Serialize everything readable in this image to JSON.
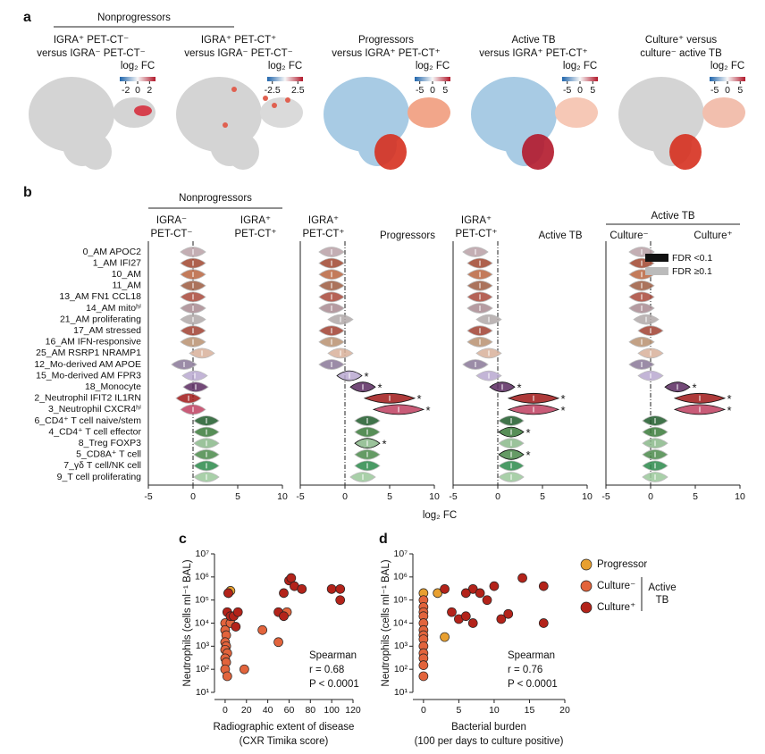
{
  "panel_labels": [
    "a",
    "b",
    "c",
    "d"
  ],
  "chart_data": [
    {
      "type": "umap",
      "group": "Nonprogressors",
      "title": [
        "IGRA⁺ PET-CT⁻",
        "versus IGRA⁻ PET-CT⁻"
      ],
      "colorbar_label": "log₂ FC",
      "clim": [
        -3,
        3
      ],
      "colorbar_ticks": [
        -2,
        0,
        2
      ]
    },
    {
      "type": "umap",
      "title": [
        "IGRA⁺ PET-CT⁺",
        "versus IGRA⁻ PET-CT⁻"
      ],
      "colorbar_label": "log₂ FC",
      "clim": [
        -3.5,
        3.5
      ],
      "colorbar_ticks": [
        -2.5,
        2.5
      ]
    },
    {
      "type": "umap",
      "title": [
        "Progressors",
        "versus IGRA⁺ PET-CT⁺"
      ],
      "colorbar_label": "log₂ FC",
      "clim": [
        -7,
        7
      ],
      "colorbar_ticks": [
        -5,
        0,
        5
      ]
    },
    {
      "type": "umap",
      "title": [
        "Active TB",
        "versus IGRA⁺ PET-CT⁺"
      ],
      "colorbar_label": "log₂ FC",
      "clim": [
        -7,
        7
      ],
      "colorbar_ticks": [
        -5,
        0,
        5
      ]
    },
    {
      "type": "umap",
      "title": [
        "Culture⁺ versus",
        "culture⁻ active TB"
      ],
      "colorbar_label": "log₂ FC",
      "clim": [
        -7,
        7
      ],
      "colorbar_ticks": [
        -5,
        0,
        5
      ]
    },
    {
      "type": "violin",
      "categories": [
        "0_AM APOC2",
        "1_AM IFI27",
        "10_AM",
        "11_AM",
        "13_AM FN1 CCL18",
        "14_AM mitoʰⁱ",
        "21_AM proliferating",
        "17_AM stressed",
        "16_AM IFN-responsive",
        "25_AM RSRP1 NRAMP1",
        "12_Mo-derived AM APOE",
        "15_Mo-derived AM FPR3",
        "18_Monocyte",
        "2_Neutrophil IFIT2 IL1RN",
        "3_Neutrophil CXCR4ʰⁱ",
        "6_CD4⁺ T cell naive/stem",
        "4_CD4⁺ T cell effector",
        "8_Treg FOXP3",
        "5_CD8A⁺ T cell",
        "7_γδ T cell/NK cell",
        "9_T cell proliferating"
      ],
      "colors": [
        "#b8a0a6",
        "#a0452e",
        "#b8643e",
        "#9c5a40",
        "#a8483a",
        "#a88a90",
        "#b0a8a8",
        "#a04030",
        "#b89070",
        "#d8b09a",
        "#8a7898",
        "#b8a8d0",
        "#5a2a60",
        "#a01818",
        "#c04060",
        "#1f5a2a",
        "#3a7a3a",
        "#8ab88a",
        "#4a8a4a",
        "#2a8a4a",
        "#9ac89a"
      ],
      "xlabel": "log₂ FC",
      "xlim": [
        -5,
        10
      ],
      "xticks": [
        -5,
        0,
        5,
        10
      ],
      "legend": [
        {
          "name": "FDR <0.1",
          "color": "#111111"
        },
        {
          "name": "FDR ≥0.1",
          "color": "#bbbbbb"
        }
      ],
      "star_label": "*",
      "panels": [
        {
          "header": "Nonprogressors",
          "left": [
            "IGRA⁻",
            "PET-CT⁻"
          ],
          "right": [
            "IGRA⁺",
            "PET-CT⁺"
          ],
          "values": [
            0,
            0,
            0,
            0,
            0,
            0,
            0,
            0,
            0,
            1,
            -1,
            0.2,
            0.3,
            -0.5,
            0,
            1.5,
            1.5,
            1.5,
            1.5,
            1.5,
            1.5
          ],
          "starred": []
        },
        {
          "left": [
            "IGRA⁺",
            "PET-CT⁺"
          ],
          "right": [
            "Progressors"
          ],
          "values": [
            -1.5,
            -1.5,
            -1.5,
            -1.5,
            -1.5,
            -1.5,
            -0.5,
            -1.5,
            -1.5,
            -0.5,
            -1.5,
            0.5,
            2,
            5,
            6,
            2.5,
            2.5,
            2.5,
            2.5,
            2.5,
            2
          ],
          "starred": [
            11,
            12,
            13,
            14,
            17
          ]
        },
        {
          "left": [
            "IGRA⁺",
            "PET-CT⁺"
          ],
          "right": [
            "Active TB"
          ],
          "values": [
            -2.5,
            -2,
            -2,
            -2,
            -2,
            -2,
            -1,
            -2,
            -2,
            -1,
            -2.5,
            -1,
            0.5,
            4,
            4,
            1.5,
            1.5,
            1.5,
            1.5,
            1.5,
            1.5
          ],
          "starred": [
            12,
            13,
            14,
            16,
            18
          ]
        },
        {
          "header": "Active TB",
          "left": [
            "Culture⁻"
          ],
          "right": [
            "Culture⁺"
          ],
          "values": [
            -1,
            -1,
            -1,
            -1,
            -1,
            -1,
            -0.5,
            0,
            -1,
            0,
            -1,
            0,
            3,
            5.5,
            5.5,
            0.5,
            0.5,
            0.5,
            0.5,
            0.5,
            0.5
          ],
          "starred": [
            12,
            13,
            14
          ]
        }
      ]
    },
    {
      "type": "scatter",
      "xlabel": [
        "Radiographic extent of disease",
        "(CXR Timika score)"
      ],
      "ylabel": "Neutrophils (cells ml⁻¹ BAL)",
      "xlim": [
        -10,
        120
      ],
      "xticks": [
        0,
        20,
        40,
        60,
        80,
        100,
        120
      ],
      "ylog": true,
      "ylim": [
        10,
        10000000
      ],
      "yticks": [
        {
          "value": 10,
          "label": "10¹"
        },
        {
          "value": 100,
          "label": "10²"
        },
        {
          "value": 1000,
          "label": "10³"
        },
        {
          "value": 10000,
          "label": "10⁴"
        },
        {
          "value": 100000,
          "label": "10⁵"
        },
        {
          "value": 1000000,
          "label": "10⁶"
        },
        {
          "value": 10000000,
          "label": "10⁷"
        }
      ],
      "annotation": [
        "Spearman",
        "r = 0.68",
        "P < 0.0001"
      ],
      "series": [
        {
          "color": "#e8a030",
          "x": [
            3,
            5
          ],
          "y": [
            200000,
            250000
          ]
        },
        {
          "color": "#e2643c",
          "x": [
            0,
            0,
            1,
            0,
            1,
            0,
            2,
            0,
            1,
            0,
            2,
            5,
            18,
            35,
            50,
            58
          ],
          "y": [
            10000,
            5000,
            3000,
            1500,
            1000,
            700,
            500,
            300,
            200,
            100,
            50,
            10000,
            100,
            5000,
            1500,
            30000
          ]
        },
        {
          "color": "#b3231a",
          "x": [
            2,
            5,
            8,
            12,
            10,
            3,
            60,
            62,
            65,
            72,
            55,
            50,
            100,
            108,
            108,
            55
          ],
          "y": [
            30000,
            20000,
            20000,
            30000,
            7000,
            200000,
            700000,
            900000,
            400000,
            300000,
            200000,
            30000,
            300000,
            300000,
            100000,
            20000
          ]
        }
      ]
    },
    {
      "type": "scatter",
      "xlabel": [
        "Bacterial burden",
        "(100 per days to culture positive)"
      ],
      "ylabel": "Neutrophils (cells ml⁻¹ BAL)",
      "xlim": [
        -1.5,
        20
      ],
      "xticks": [
        0,
        5,
        10,
        15,
        20
      ],
      "ylog": true,
      "ylim": [
        10,
        10000000
      ],
      "yticks": [
        {
          "value": 10,
          "label": "10¹"
        },
        {
          "value": 100,
          "label": "10²"
        },
        {
          "value": 1000,
          "label": "10³"
        },
        {
          "value": 10000,
          "label": "10⁴"
        },
        {
          "value": 100000,
          "label": "10⁵"
        },
        {
          "value": 1000000,
          "label": "10⁶"
        },
        {
          "value": 10000000,
          "label": "10⁷"
        }
      ],
      "annotation": [
        "Spearman",
        "r = 0.76",
        "P < 0.0001"
      ],
      "legend_group": [
        "Active",
        "TB"
      ],
      "series": [
        {
          "name": "Progressor",
          "color": "#e8a030",
          "x": [
            0,
            2,
            3
          ],
          "y": [
            200000,
            200000,
            2500
          ]
        },
        {
          "name": "Culture⁻",
          "color": "#e2643c",
          "x": [
            0,
            0,
            0,
            0,
            0,
            0,
            0,
            0,
            0,
            0,
            0,
            0,
            0
          ],
          "y": [
            100000,
            50000,
            30000,
            20000,
            10000,
            5000,
            3000,
            2000,
            1000,
            500,
            300,
            150,
            50
          ]
        },
        {
          "name": "Culture⁺",
          "color": "#b3231a",
          "x": [
            3,
            4,
            5,
            6,
            7,
            7,
            8,
            9,
            10,
            11,
            12,
            14,
            17,
            17,
            6
          ],
          "y": [
            300000,
            30000,
            15000,
            20000,
            10000,
            300000,
            200000,
            100000,
            400000,
            15000,
            25000,
            900000,
            400000,
            10000,
            200000
          ]
        }
      ]
    }
  ]
}
